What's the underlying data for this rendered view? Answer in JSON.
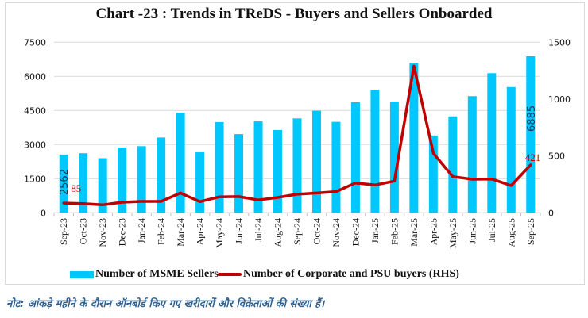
{
  "chart_data": {
    "type": "bar+line",
    "title": "Chart -23 : Trends in TReDS - Buyers and Sellers Onboarded",
    "categories": [
      "Sep-23",
      "Oct-23",
      "Nov-23",
      "Dec-23",
      "Jan-24",
      "Feb-24",
      "Mar-24",
      "Apr-24",
      "May-24",
      "Jun-24",
      "Jul-24",
      "Aug-24",
      "Sep-24",
      "Oct-24",
      "Nov-24",
      "Dec-24",
      "Jan-25",
      "Feb-25",
      "Mar-25",
      "Apr-25",
      "May-25",
      "Jun-25",
      "Jul-25",
      "Aug-25",
      "Sep-25"
    ],
    "series": [
      {
        "name": "Number of MSME Sellers",
        "type": "bar",
        "axis": "left",
        "color": "#00c8ff",
        "values": [
          2562,
          2620,
          2400,
          2870,
          2930,
          3310,
          4400,
          2660,
          3990,
          3460,
          4020,
          3640,
          4150,
          4490,
          4000,
          4860,
          5410,
          4890,
          6600,
          3400,
          4240,
          5130,
          6140,
          5530,
          6885
        ]
      },
      {
        "name": "Number of Corporate and PSU buyers (RHS)",
        "type": "line",
        "axis": "right",
        "color": "#c00000",
        "values": [
          85,
          80,
          70,
          93,
          100,
          100,
          174,
          98,
          140,
          142,
          112,
          135,
          163,
          174,
          186,
          262,
          244,
          279,
          1290,
          523,
          318,
          295,
          297,
          239,
          421
        ]
      }
    ],
    "data_labels": [
      {
        "series": 0,
        "index": 0,
        "text": "2562"
      },
      {
        "series": 1,
        "index": 0,
        "text": "85"
      },
      {
        "series": 0,
        "index": 24,
        "text": "6885"
      },
      {
        "series": 1,
        "index": 24,
        "text": "421"
      }
    ],
    "left_axis": {
      "ylim": [
        0,
        7500
      ],
      "ticks": [
        "0",
        "1500",
        "3000",
        "4500",
        "6000",
        "7500"
      ]
    },
    "right_axis": {
      "ylim": [
        0,
        1500
      ],
      "ticks": [
        "0",
        "500",
        "1000",
        "1500"
      ]
    },
    "grid": true,
    "legend": "bottom"
  },
  "note": "नोट: आंकड़े महीने के दौरान ऑनबोर्ड किए गए खरीदारों और विक्रेताओं की संख्या हैं।"
}
